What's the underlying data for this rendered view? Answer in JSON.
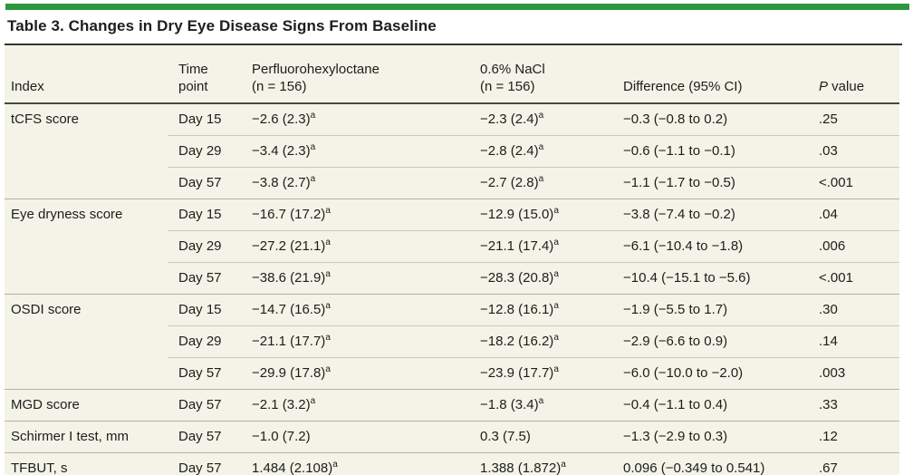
{
  "title": "Table 3. Changes in Dry Eye Disease Signs From Baseline",
  "colors": {
    "accent_green": "#2E963C",
    "table_background": "#F4F3E8",
    "text": "#1D1D1B",
    "title_rule": "#35342C",
    "header_rule": "#4A493F",
    "row_line": "#CBC9BC",
    "group_line": "#B3B1A4",
    "bottom_rule": "#2B2B24"
  },
  "table": {
    "columns": [
      {
        "id": "index",
        "lines": [
          "Index"
        ],
        "italic_first": false
      },
      {
        "id": "time-point",
        "lines": [
          "Time",
          "point"
        ],
        "italic_first": false
      },
      {
        "id": "perfluorohexyloctane",
        "lines": [
          "Perfluorohexyloctane",
          "(n = 156)"
        ],
        "italic_first": false
      },
      {
        "id": "nacl",
        "lines": [
          "0.6% NaCl",
          "(n = 156)"
        ],
        "italic_first": false
      },
      {
        "id": "difference",
        "lines": [
          "Difference (95% CI)"
        ],
        "italic_first": false
      },
      {
        "id": "p-value",
        "lines": [
          "P value"
        ],
        "italic_first": true
      }
    ],
    "rows": [
      {
        "index": "tCFS score",
        "time": "Day 15",
        "pfho": "−2.6 (2.3)^a",
        "nacl": "−2.3 (2.4)^a",
        "diff": "−0.3 (−0.8 to 0.2)",
        "p": ".25",
        "group_start": true
      },
      {
        "index": "",
        "time": "Day 29",
        "pfho": "−3.4 (2.3)^a",
        "nacl": "−2.8 (2.4)^a",
        "diff": "−0.6 (−1.1 to −0.1)",
        "p": ".03",
        "group_start": false
      },
      {
        "index": "",
        "time": "Day 57",
        "pfho": "−3.8 (2.7)^a",
        "nacl": "−2.7 (2.8)^a",
        "diff": "−1.1 (−1.7 to −0.5)",
        "p": "<.001",
        "group_start": false
      },
      {
        "index": "Eye dryness score",
        "time": "Day 15",
        "pfho": "−16.7 (17.2)^a",
        "nacl": "−12.9 (15.0)^a",
        "diff": "−3.8 (−7.4 to −0.2)",
        "p": ".04",
        "group_start": true
      },
      {
        "index": "",
        "time": "Day 29",
        "pfho": "−27.2 (21.1)^a",
        "nacl": "−21.1 (17.4)^a",
        "diff": "−6.1 (−10.4 to −1.8)",
        "p": ".006",
        "group_start": false
      },
      {
        "index": "",
        "time": "Day 57",
        "pfho": "−38.6 (21.9)^a",
        "nacl": "−28.3 (20.8)^a",
        "diff": "−10.4 (−15.1 to −5.6)",
        "p": "<.001",
        "group_start": false
      },
      {
        "index": "OSDI score",
        "time": "Day 15",
        "pfho": "−14.7 (16.5)^a",
        "nacl": "−12.8 (16.1)^a",
        "diff": "−1.9 (−5.5 to 1.7)",
        "p": ".30",
        "group_start": true
      },
      {
        "index": "",
        "time": "Day 29",
        "pfho": "−21.1 (17.7)^a",
        "nacl": "−18.2 (16.2)^a",
        "diff": "−2.9 (−6.6 to 0.9)",
        "p": ".14",
        "group_start": false
      },
      {
        "index": "",
        "time": "Day 57",
        "pfho": "−29.9 (17.8)^a",
        "nacl": "−23.9 (17.7)^a",
        "diff": "−6.0 (−10.0 to −2.0)",
        "p": ".003",
        "group_start": false
      },
      {
        "index": "MGD score",
        "time": "Day 57",
        "pfho": "−2.1 (3.2)^a",
        "nacl": "−1.8 (3.4)^a",
        "diff": "−0.4 (−1.1 to 0.4)",
        "p": ".33",
        "group_start": true
      },
      {
        "index": "Schirmer I test, mm",
        "time": "Day 57",
        "pfho": "−1.0 (7.2)",
        "nacl": "0.3 (7.5)",
        "diff": "−1.3 (−2.9 to 0.3)",
        "p": ".12",
        "group_start": true
      },
      {
        "index": "TFBUT, s",
        "time": "Day 57",
        "pfho": "1.484 (2.108)^a",
        "nacl": "1.388 (1.872)^a",
        "diff": "0.096 (−0.349 to 0.541)",
        "p": ".67",
        "group_start": true
      }
    ]
  }
}
